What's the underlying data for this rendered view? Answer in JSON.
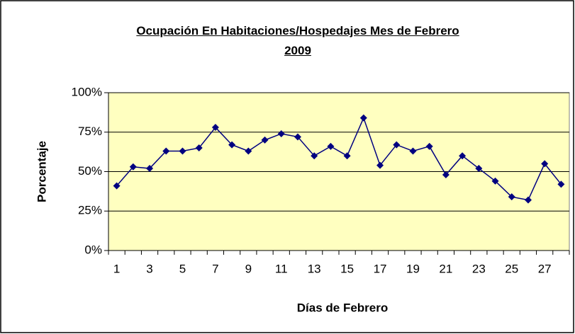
{
  "chart_data": {
    "type": "line",
    "title": "Ocupación En Habitaciones/Hospedajes Mes de Febrero 2009",
    "x_label": "Días de Febrero",
    "y_label": "Porcentaje",
    "categories": [
      "1",
      null,
      "3",
      null,
      "5",
      null,
      "7",
      null,
      "9",
      null,
      "11",
      null,
      "13",
      null,
      "15",
      null,
      "17",
      null,
      "19",
      null,
      "21",
      null,
      "23",
      null,
      "25",
      null,
      "27",
      null
    ],
    "series": [
      {
        "name": "Ocupación",
        "color": "#000080",
        "values": [
          41,
          53,
          52,
          63,
          63,
          65,
          78,
          67,
          63,
          70,
          74,
          72,
          60,
          66,
          60,
          84,
          54,
          67,
          63,
          66,
          48,
          60,
          52,
          44,
          34,
          32,
          55,
          42
        ]
      }
    ],
    "ylim": [
      0,
      100
    ],
    "yticks": [
      {
        "value": 0,
        "label": "0%"
      },
      {
        "value": 25,
        "label": "25%"
      },
      {
        "value": 50,
        "label": "50%"
      },
      {
        "value": 75,
        "label": "75%"
      },
      {
        "value": 100,
        "label": "100%"
      }
    ],
    "grid": true,
    "plot_background": "#ffffc0"
  }
}
